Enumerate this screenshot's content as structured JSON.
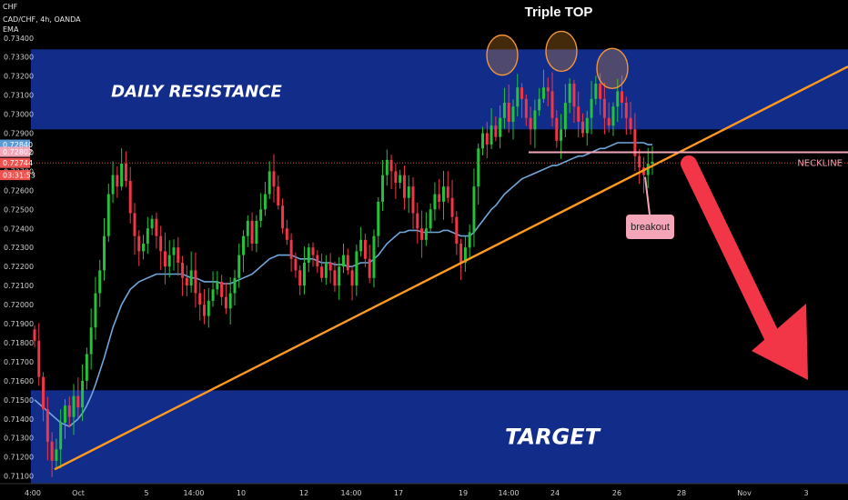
{
  "header": {
    "unit": "CHF",
    "symbol": "CAD/CHF, 4h, OANDA",
    "indicator": "EMA"
  },
  "chart_data": {
    "type": "candlestick",
    "title": "Triple TOP",
    "ylim": [
      0.7106,
      0.7348
    ],
    "y_ticks": [
      0.711,
      0.712,
      0.713,
      0.714,
      0.715,
      0.716,
      0.717,
      0.718,
      0.719,
      0.72,
      0.721,
      0.722,
      0.723,
      0.724,
      0.725,
      0.726,
      0.727,
      0.728,
      0.729,
      0.73,
      0.731,
      0.732,
      0.733,
      0.734
    ],
    "y_tick_labels": [
      "0.71100",
      "0.71200",
      "0.71300",
      "0.71400",
      "0.71500",
      "0.71600",
      "0.71700",
      "0.71800",
      "0.71900",
      "0.72000",
      "0.72100",
      "0.72200",
      "0.72300",
      "0.72400",
      "0.72500",
      "0.72600",
      "0.72700",
      "0.72800",
      "0.72900",
      "0.73000",
      "0.73100",
      "0.73200",
      "0.73300",
      "0.73400"
    ],
    "x_tick_labels": [
      "4:00",
      "Oct",
      "5",
      "14:00",
      "10",
      "12",
      "14:00",
      "17",
      "19",
      "14:00",
      "24",
      "26",
      "28",
      "Nov",
      "3"
    ],
    "price_labels": [
      {
        "value": 0.7284,
        "text": "0.72840",
        "color": "#5b9bd5"
      },
      {
        "value": 0.72802,
        "text": "0.72802",
        "color": "#f4a6b8"
      },
      {
        "value": 0.72744,
        "text": "0.72744",
        "color": "#ef5350"
      },
      {
        "value": 0.7268,
        "text": "03:31:53",
        "color": "#ef5350"
      }
    ],
    "zones": [
      {
        "label": "DAILY RESISTANCE",
        "from": 0.7292,
        "to": 0.7334
      },
      {
        "label": "TARGET",
        "from": 0.7106,
        "to": 0.7155
      }
    ],
    "neckline": {
      "label": "NECKLINE",
      "value": 0.728
    },
    "annotations": [
      "breakout"
    ],
    "closes": [
      0.7181,
      0.7162,
      0.7145,
      0.7128,
      0.7118,
      0.7124,
      0.7138,
      0.7147,
      0.7141,
      0.7152,
      0.7146,
      0.716,
      0.7174,
      0.7188,
      0.7206,
      0.7218,
      0.7236,
      0.7258,
      0.7268,
      0.7262,
      0.7274,
      0.7265,
      0.7248,
      0.7236,
      0.7228,
      0.7232,
      0.724,
      0.7245,
      0.7236,
      0.7228,
      0.722,
      0.7226,
      0.723,
      0.7222,
      0.7214,
      0.721,
      0.7218,
      0.7206,
      0.72,
      0.7194,
      0.7202,
      0.7208,
      0.7212,
      0.7204,
      0.7198,
      0.7206,
      0.7214,
      0.7226,
      0.7236,
      0.7244,
      0.7232,
      0.7244,
      0.725,
      0.7258,
      0.727,
      0.7262,
      0.7252,
      0.724,
      0.7234,
      0.7224,
      0.7218,
      0.721,
      0.7222,
      0.723,
      0.7226,
      0.722,
      0.7214,
      0.7222,
      0.7218,
      0.721,
      0.722,
      0.7226,
      0.7218,
      0.721,
      0.7228,
      0.7234,
      0.7224,
      0.7214,
      0.7236,
      0.7254,
      0.7268,
      0.7276,
      0.727,
      0.7264,
      0.7268,
      0.7256,
      0.7262,
      0.7248,
      0.724,
      0.7234,
      0.724,
      0.725,
      0.7258,
      0.7254,
      0.7262,
      0.7256,
      0.7246,
      0.7232,
      0.7222,
      0.723,
      0.7238,
      0.7262,
      0.7282,
      0.729,
      0.7284,
      0.7294,
      0.7288,
      0.7298,
      0.7306,
      0.7296,
      0.7304,
      0.7314,
      0.7308,
      0.7298,
      0.7292,
      0.7302,
      0.7308,
      0.7314,
      0.7312,
      0.7298,
      0.7286,
      0.7292,
      0.7306,
      0.7316,
      0.7304,
      0.7296,
      0.729,
      0.7298,
      0.7308,
      0.7316,
      0.7308,
      0.7298,
      0.7294,
      0.7304,
      0.7312,
      0.7306,
      0.7298,
      0.7292,
      0.7278,
      0.7272,
      0.7268,
      0.7274,
      0.7275
    ],
    "ema": [
      0.715,
      0.7148,
      0.7146,
      0.7144,
      0.7142,
      0.714,
      0.7138,
      0.7137,
      0.7136,
      0.7138,
      0.714,
      0.7143,
      0.7147,
      0.7152,
      0.7158,
      0.7165,
      0.7172,
      0.718,
      0.7188,
      0.7194,
      0.72,
      0.7204,
      0.7208,
      0.721,
      0.7212,
      0.7213,
      0.7214,
      0.7215,
      0.7216,
      0.7216,
      0.7216,
      0.7216,
      0.7216,
      0.7216,
      0.7216,
      0.7215,
      0.7214,
      0.7214,
      0.7213,
      0.7212,
      0.7212,
      0.7212,
      0.7212,
      0.7211,
      0.7211,
      0.7211,
      0.7212,
      0.7213,
      0.7214,
      0.7215,
      0.7216,
      0.7218,
      0.722,
      0.7222,
      0.7224,
      0.7225,
      0.7226,
      0.7226,
      0.7226,
      0.7226,
      0.7225,
      0.7224,
      0.7224,
      0.7224,
      0.7224,
      0.7223,
      0.7222,
      0.7222,
      0.7222,
      0.7221,
      0.7221,
      0.7221,
      0.722,
      0.722,
      0.7221,
      0.7222,
      0.7222,
      0.7222,
      0.7224,
      0.7226,
      0.7229,
      0.7232,
      0.7234,
      0.7236,
      0.7238,
      0.7238,
      0.7239,
      0.7239,
      0.7239,
      0.7238,
      0.7238,
      0.7238,
      0.7238,
      0.7238,
      0.7239,
      0.7239,
      0.7238,
      0.7237,
      0.7236,
      0.7236,
      0.7236,
      0.7238,
      0.7241,
      0.7244,
      0.7247,
      0.725,
      0.7252,
      0.7255,
      0.7258,
      0.726,
      0.7262,
      0.7264,
      0.7266,
      0.7267,
      0.7268,
      0.7269,
      0.727,
      0.7271,
      0.7272,
      0.7273,
      0.7273,
      0.7274,
      0.7275,
      0.7276,
      0.7277,
      0.7278,
      0.7278,
      0.7279,
      0.728,
      0.7281,
      0.7282,
      0.7282,
      0.7283,
      0.7284,
      0.7285,
      0.7285,
      0.7285,
      0.7285,
      0.7285,
      0.7285,
      0.7285,
      0.7284,
      0.7284
    ]
  }
}
